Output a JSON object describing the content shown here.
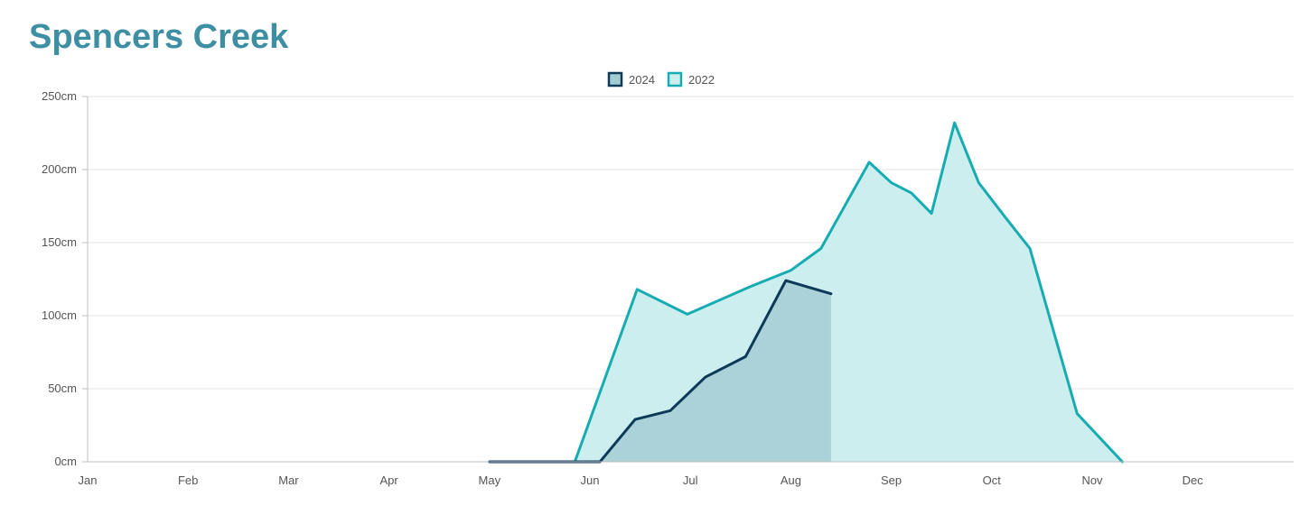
{
  "page": {
    "title": "Spencers Creek"
  },
  "colors": {
    "title": "#3e8fa3",
    "series_2024_line": "#0e3a5a",
    "series_2024_fill": "#a3cdd3",
    "series_2022_line": "#16acb2",
    "series_2022_fill": "#cdeeee",
    "grid": "#e3e3e3",
    "axis": "#bfbfbf",
    "tick_text": "#555555"
  },
  "chart_data": {
    "type": "area",
    "title": "Spencers Creek",
    "xlabel": "",
    "ylabel": "",
    "x_tick_labels": [
      "Jan",
      "Feb",
      "Mar",
      "Apr",
      "May",
      "Jun",
      "Jul",
      "Aug",
      "Sep",
      "Oct",
      "Nov",
      "Dec"
    ],
    "y_ticks": [
      0,
      50,
      100,
      150,
      200,
      250
    ],
    "y_tick_labels": [
      "0cm",
      "50cm",
      "100cm",
      "150cm",
      "200cm",
      "250cm"
    ],
    "ylim": [
      0,
      250
    ],
    "x_unit": "month",
    "xlim": [
      1,
      13.03
    ],
    "grid": true,
    "legend_position": "top-center",
    "series": [
      {
        "name": "2024",
        "color": "#0e3a5a",
        "fill": "#a3cdd3",
        "points": [
          [
            5.0,
            0
          ],
          [
            6.1,
            0
          ],
          [
            6.45,
            29
          ],
          [
            6.8,
            35
          ],
          [
            7.15,
            58
          ],
          [
            7.55,
            72
          ],
          [
            7.95,
            124
          ],
          [
            8.4,
            115
          ]
        ]
      },
      {
        "name": "2022",
        "color": "#16acb2",
        "fill": "#cdeeee",
        "points": [
          [
            5.85,
            0
          ],
          [
            6.47,
            118
          ],
          [
            6.97,
            101
          ],
          [
            7.6,
            120
          ],
          [
            8.0,
            131
          ],
          [
            8.3,
            146
          ],
          [
            8.78,
            205
          ],
          [
            9.0,
            191
          ],
          [
            9.2,
            184
          ],
          [
            9.4,
            170
          ],
          [
            9.63,
            232
          ],
          [
            9.87,
            191
          ],
          [
            10.15,
            166
          ],
          [
            10.38,
            146
          ],
          [
            10.85,
            33
          ],
          [
            11.3,
            0
          ]
        ]
      }
    ]
  }
}
